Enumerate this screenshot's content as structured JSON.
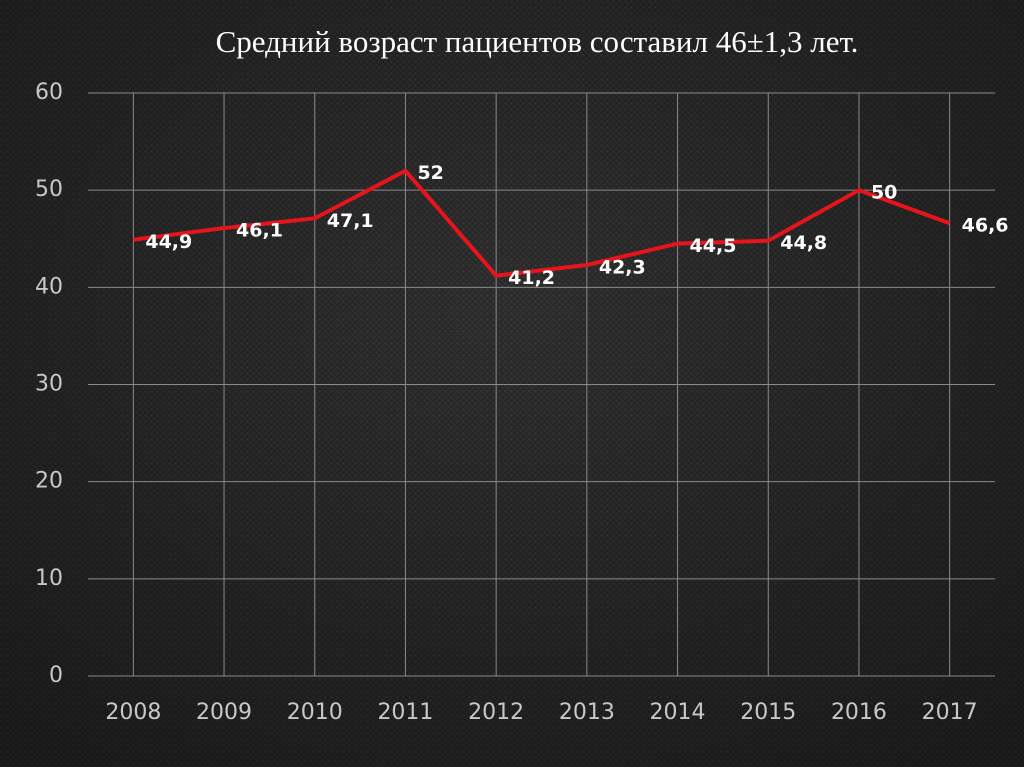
{
  "chart_data": {
    "type": "line",
    "title": "Средний возраст пациентов составил 46±1,3 лет.",
    "categories": [
      "2008",
      "2009",
      "2010",
      "2011",
      "2012",
      "2013",
      "2014",
      "2015",
      "2016",
      "2017"
    ],
    "values": [
      44.9,
      46.1,
      47.1,
      52,
      41.2,
      42.3,
      44.5,
      44.8,
      50,
      46.6
    ],
    "value_labels": [
      "44,9",
      "46,1",
      "47,1",
      "52",
      "41,2",
      "42,3",
      "44,5",
      "44,8",
      "50",
      "46,6"
    ],
    "color": "#e8141c",
    "ylim": [
      0,
      60
    ],
    "yticks": [
      0,
      10,
      20,
      30,
      40,
      50,
      60
    ],
    "grid": true
  }
}
